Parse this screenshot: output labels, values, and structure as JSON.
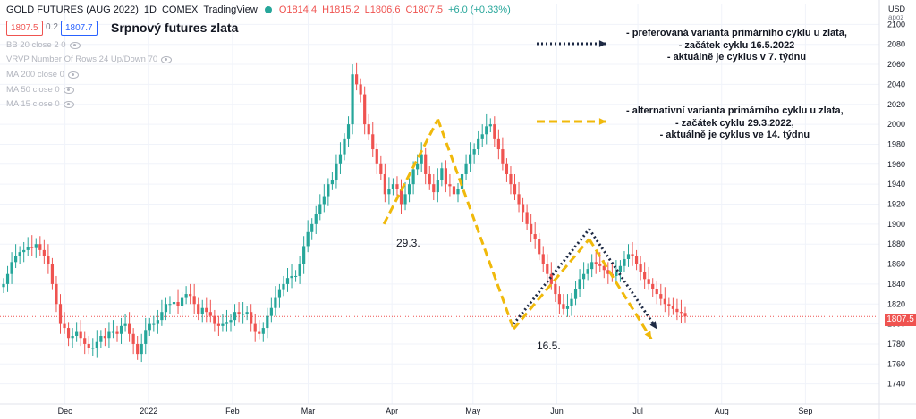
{
  "header": {
    "symbol": "GOLD FUTURES (AUG 2022)",
    "interval": "1D",
    "exchange": "COMEX",
    "source": "TradingView",
    "open": "O1814.4",
    "high": "H1815.2",
    "low": "L1806.6",
    "close": "C1807.5",
    "change": "+6.0 (+0.33%)",
    "bid": "1807.5",
    "spread": "0.2",
    "ask": "1807.7"
  },
  "indicators": [
    "BB 20 close 2 0",
    "VRVP Number Of Rows 24 Up/Down 70",
    "MA 200 close 0",
    "MA 50 close 0",
    "MA 15 close 0"
  ],
  "title": "Srpnový futures zlata",
  "notes": {
    "preferred": [
      "- preferovaná varianta primárního cyklu u zlata,",
      "- začátek cyklu 16.5.2022",
      "- aktuálně je cyklus v 7. týdnu"
    ],
    "alternative": [
      "- alternativní varianta primárního cyklu u zlata,",
      "- začátek cyklu 29.3.2022,",
      "- aktuálně je cyklus ve 14. týdnu"
    ]
  },
  "cycle_labels": {
    "start_alt": "29.3.",
    "start_pref": "16.5."
  },
  "price_axis": {
    "currency": "USD",
    "sub": "apoz",
    "current": "1807.5"
  },
  "colors": {
    "up": "#26a69a",
    "down": "#ef5350",
    "preferred": "#1e2a44",
    "alternative": "#f0b90b",
    "grid": "#f0f3fa"
  },
  "chart_data": {
    "type": "candlestick",
    "ylim": [
      1720,
      2120
    ],
    "yticks": [
      1740,
      1760,
      1780,
      1800,
      1820,
      1840,
      1860,
      1880,
      1900,
      1920,
      1940,
      1960,
      1980,
      2000,
      2020,
      2040,
      2060,
      2080,
      2100
    ],
    "xlabels": [
      "Dec",
      "2022",
      "Feb",
      "Mar",
      "Apr",
      "May",
      "Jun",
      "Jul",
      "Aug",
      "Sep"
    ],
    "grid": "on",
    "closes": [
      1840,
      1850,
      1862,
      1868,
      1872,
      1874,
      1877,
      1876,
      1880,
      1874,
      1868,
      1860,
      1840,
      1820,
      1800,
      1796,
      1786,
      1788,
      1792,
      1786,
      1780,
      1776,
      1776,
      1782,
      1788,
      1786,
      1792,
      1792,
      1790,
      1798,
      1800,
      1790,
      1780,
      1770,
      1780,
      1794,
      1800,
      1800,
      1804,
      1812,
      1820,
      1820,
      1822,
      1818,
      1826,
      1830,
      1828,
      1820,
      1810,
      1816,
      1812,
      1808,
      1800,
      1798,
      1800,
      1802,
      1804,
      1812,
      1810,
      1810,
      1812,
      1800,
      1792,
      1790,
      1796,
      1808,
      1816,
      1826,
      1834,
      1840,
      1846,
      1848,
      1848,
      1860,
      1878,
      1892,
      1900,
      1910,
      1920,
      1928,
      1940,
      1944,
      1960,
      1970,
      1985,
      2000,
      2050,
      2040,
      2030,
      2000,
      1990,
      1975,
      1960,
      1950,
      1930,
      1935,
      1940,
      1935,
      1920,
      1930,
      1940,
      1955,
      1960,
      1970,
      1950,
      1940,
      1932,
      1944,
      1956,
      1940,
      1938,
      1930,
      1935,
      1950,
      1960,
      1970,
      1975,
      1985,
      1990,
      1998,
      2000,
      1985,
      1975,
      1960,
      1950,
      1940,
      1930,
      1920,
      1912,
      1900,
      1890,
      1885,
      1870,
      1860,
      1850,
      1840,
      1830,
      1820,
      1815,
      1818,
      1825,
      1835,
      1845,
      1850,
      1855,
      1862,
      1860,
      1858,
      1854,
      1850,
      1848,
      1852,
      1858,
      1865,
      1870,
      1868,
      1860,
      1852,
      1845,
      1840,
      1835,
      1830,
      1825,
      1820,
      1818,
      1815,
      1812,
      1811,
      1807.5
    ],
    "series": [
      {
        "name": "preferovaná varianta",
        "points": [
          [
            "2022-05-16",
            1800
          ],
          [
            "2022-06-13",
            1895
          ],
          [
            "2022-07-08",
            1795
          ]
        ]
      },
      {
        "name": "alternativní varianta",
        "points": [
          [
            "2022-03-29",
            1900
          ],
          [
            "2022-04-18",
            2005
          ],
          [
            "2022-05-16",
            1795
          ],
          [
            "2022-06-13",
            1885
          ],
          [
            "2022-07-06",
            1785
          ]
        ]
      }
    ]
  }
}
